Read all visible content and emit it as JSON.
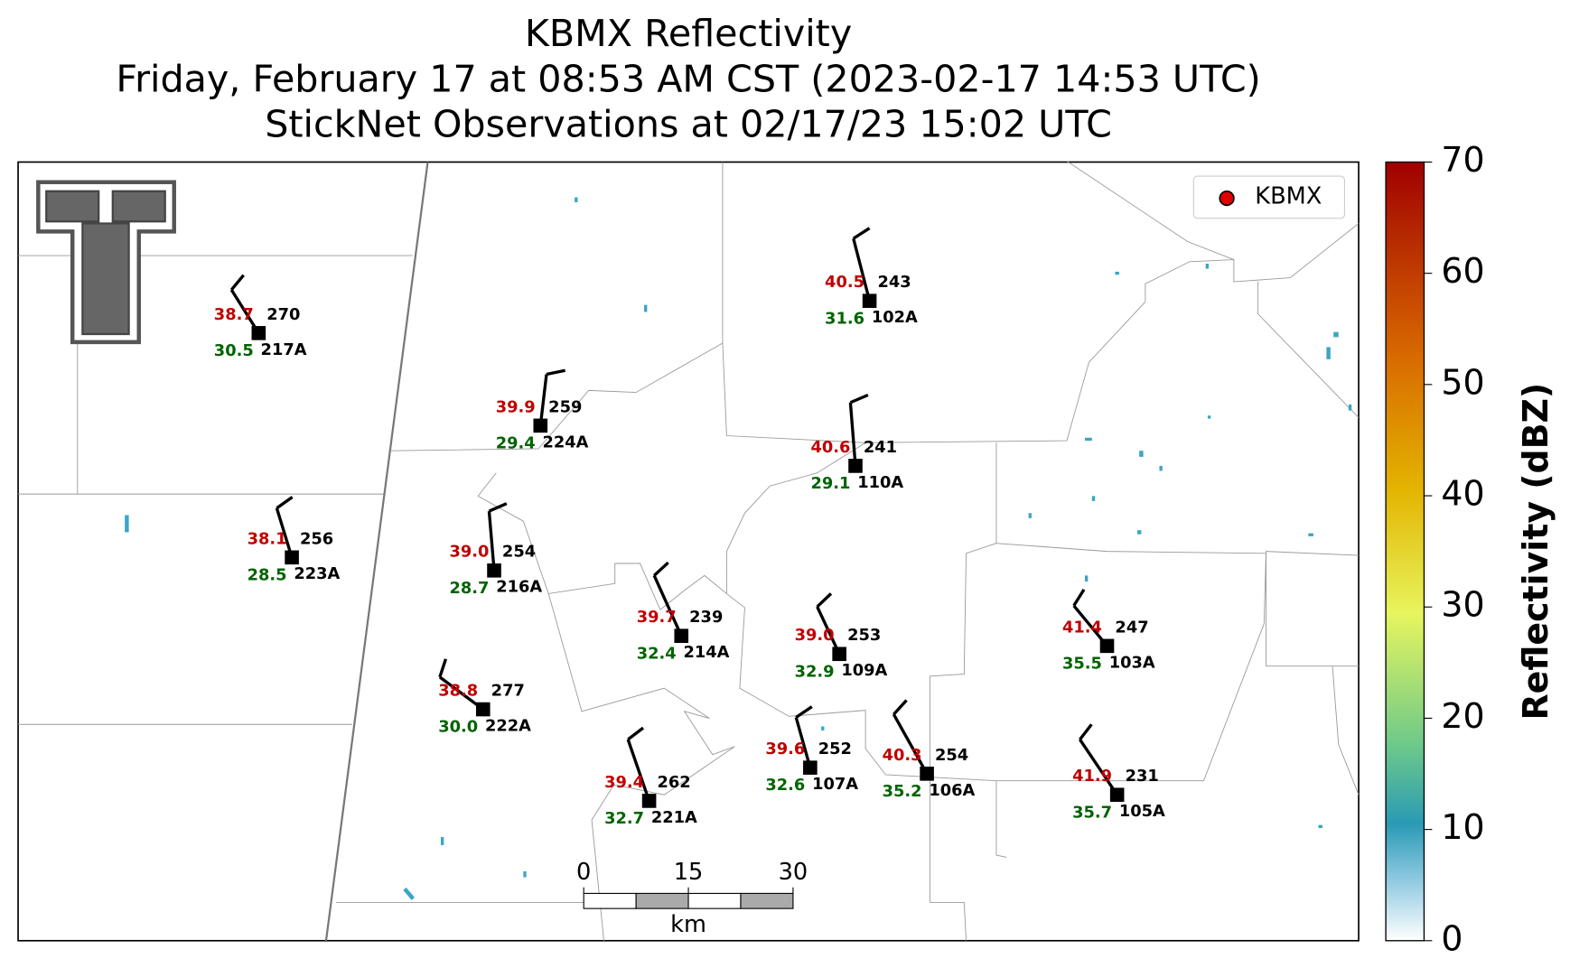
{
  "header": {
    "title_lines": [
      "KBMX Reflectivity",
      "Friday, February 17 at 08:53 AM CST (2023-02-17 14:53 UTC)",
      "StickNet Observations at 02/17/23 15:02 UTC"
    ]
  },
  "legend": {
    "label": "KBMX",
    "color": "#e00000"
  },
  "stations": [
    {
      "id": "217A",
      "temperature": "38.7",
      "dewpoint": "30.5",
      "value": "270"
    },
    {
      "id": "224A",
      "temperature": "39.9",
      "dewpoint": "29.4",
      "value": "259"
    },
    {
      "id": "223A",
      "temperature": "38.1",
      "dewpoint": "28.5",
      "value": "256"
    },
    {
      "id": "216A",
      "temperature": "39.0",
      "dewpoint": "28.7",
      "value": "254"
    },
    {
      "id": "222A",
      "temperature": "38.8",
      "dewpoint": "30.0",
      "value": "277"
    },
    {
      "id": "214A",
      "temperature": "39.7",
      "dewpoint": "32.4",
      "value": "239"
    },
    {
      "id": "221A",
      "temperature": "39.4",
      "dewpoint": "32.7",
      "value": "262"
    },
    {
      "id": "102A",
      "temperature": "40.5",
      "dewpoint": "31.6",
      "value": "243"
    },
    {
      "id": "110A",
      "temperature": "40.6",
      "dewpoint": "29.1",
      "value": "241"
    },
    {
      "id": "109A",
      "temperature": "39.0",
      "dewpoint": "32.9",
      "value": "253"
    },
    {
      "id": "107A",
      "temperature": "39.6",
      "dewpoint": "32.6",
      "value": "252"
    },
    {
      "id": "106A",
      "temperature": "40.3",
      "dewpoint": "35.2",
      "value": "254"
    },
    {
      "id": "103A",
      "temperature": "41.4",
      "dewpoint": "35.5",
      "value": "247"
    },
    {
      "id": "105A",
      "temperature": "41.9",
      "dewpoint": "35.7",
      "value": "231"
    }
  ],
  "scale_bar": {
    "ticks": [
      0,
      15,
      30
    ],
    "unit": "km"
  },
  "colorbar": {
    "label": "Reflectivity (dBZ)",
    "range": [
      0,
      70
    ],
    "ticks": [
      0,
      10,
      20,
      30,
      40,
      50,
      60,
      70
    ]
  }
}
